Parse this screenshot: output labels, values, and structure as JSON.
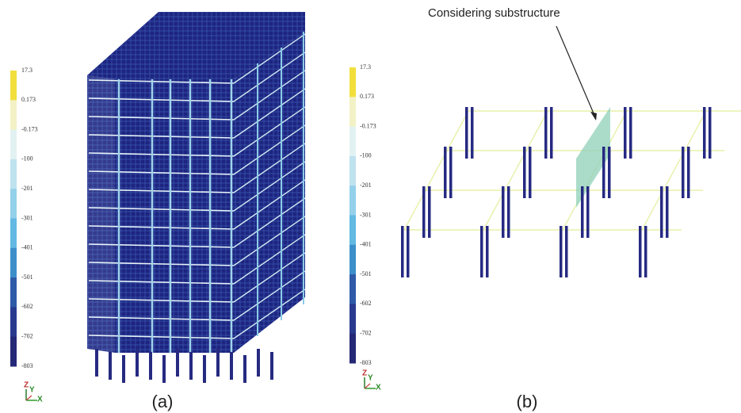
{
  "legend_a": {
    "labels": [
      "17.3",
      "0.173",
      "-0.173",
      "-100",
      "-201",
      "-301",
      "-401",
      "-501",
      "-602",
      "-702",
      "-803"
    ]
  },
  "legend_b": {
    "labels": [
      "17.3",
      "0.173",
      "-0.173",
      "-100",
      "-201",
      "-301",
      "-401",
      "-501",
      "-602",
      "-702",
      "-803"
    ]
  },
  "panel_a": {
    "label": "(a)",
    "axes": {
      "z": "Z",
      "y": "Y",
      "x": "X"
    }
  },
  "panel_b": {
    "label": "(b)",
    "annotation": "Considering substructure",
    "axes": {
      "z": "Z",
      "y": "Y",
      "x": "X"
    }
  }
}
